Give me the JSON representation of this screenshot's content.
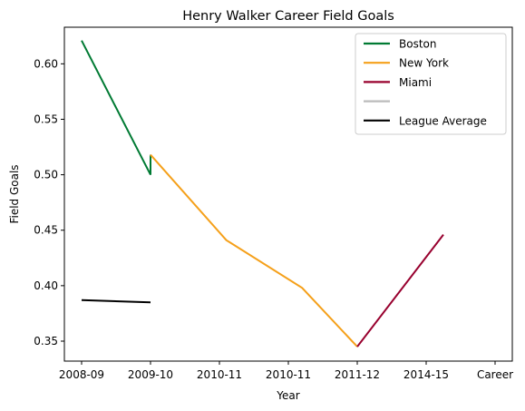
{
  "chart_data": {
    "type": "line",
    "title": "Henry Walker  Career Field Goals",
    "xlabel": "Year",
    "ylabel": "Field Goals",
    "x_tick_labels": [
      "2008-09",
      "2009-10",
      "2010-11",
      "2010-11",
      "2011-12",
      "2014-15",
      "Career"
    ],
    "xlim": [
      -0.25,
      6.25
    ],
    "ylim": [
      0.332,
      0.633
    ],
    "y_ticks": [
      0.35,
      0.4,
      0.45,
      0.5,
      0.55,
      0.6
    ],
    "y_tick_labels": [
      "0.35",
      "0.40",
      "0.45",
      "0.50",
      "0.55",
      "0.60"
    ],
    "grid": false,
    "legend_position": "top-right",
    "series": [
      {
        "name": "Boston",
        "color": "#007a33",
        "points": [
          [
            0,
            0.621
          ],
          [
            1.0,
            0.5
          ],
          [
            1.0,
            0.518
          ]
        ]
      },
      {
        "name": "New York",
        "color": "#f5a01a",
        "points": [
          [
            1.0,
            0.518
          ],
          [
            2.1,
            0.441
          ],
          [
            3.2,
            0.398
          ],
          [
            4.0,
            0.345
          ]
        ]
      },
      {
        "name": "Miami",
        "color": "#98002e",
        "points": [
          [
            4.0,
            0.345
          ],
          [
            5.25,
            0.446
          ]
        ]
      },
      {
        "name": "",
        "color": "#bbbbbb",
        "points": []
      },
      {
        "name": "League Average",
        "color": "#000000",
        "points": [
          [
            0,
            0.387
          ],
          [
            1.0,
            0.385
          ]
        ]
      }
    ]
  }
}
